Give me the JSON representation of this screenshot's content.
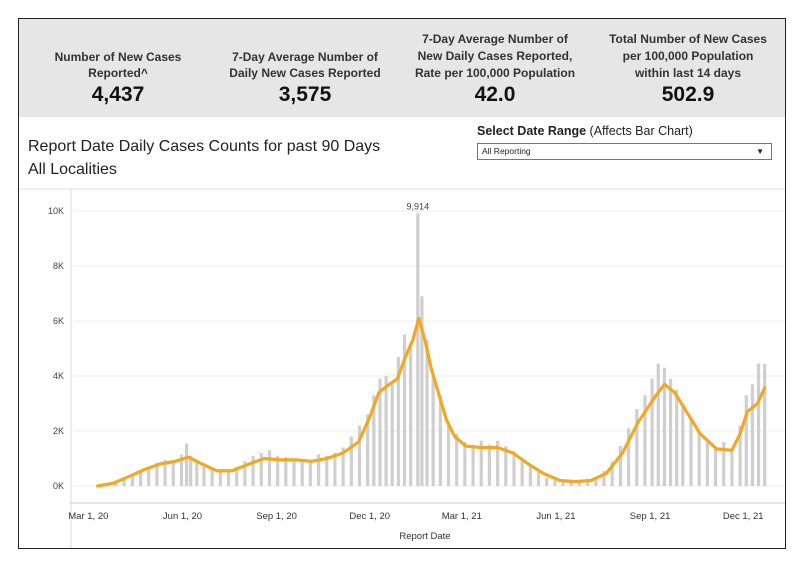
{
  "kpis": [
    {
      "label_lines": [
        "Number of New Cases",
        "Reported^"
      ],
      "value": "4,437"
    },
    {
      "label_lines": [
        "7-Day Average Number of",
        "Daily New Cases Reported"
      ],
      "value": "3,575"
    },
    {
      "label_lines": [
        "7-Day Average Number of",
        "New Daily Cases Reported,",
        "Rate per 100,000 Population"
      ],
      "value": "42.0"
    },
    {
      "label_lines": [
        "Total Number of New Cases",
        "per 100,000 Population",
        "within last 14 days"
      ],
      "value": "502.9"
    }
  ],
  "title_lines": [
    "Report Date Daily Cases Counts for past 90 Days",
    "All Localities"
  ],
  "date_range": {
    "label_bold": "Select Date Range",
    "label_rest": " (Affects Bar Chart)",
    "selected": "All Reporting"
  },
  "colors": {
    "bars": "#cfcfcf",
    "average_line": "#f2a822",
    "kpi_band": "#e6e6e6"
  },
  "icons": {
    "dropdown": "caret-down-icon"
  },
  "chart_data": {
    "type": "bar",
    "xlabel": "Report Date",
    "ylabel": "",
    "ylim": [
      0,
      10000
    ],
    "y_ticks": [
      {
        "value": 0,
        "label": "0K"
      },
      {
        "value": 2000,
        "label": "2K"
      },
      {
        "value": 4000,
        "label": "4K"
      },
      {
        "value": 6000,
        "label": "6K"
      },
      {
        "value": 8000,
        "label": "8K"
      },
      {
        "value": 10000,
        "label": "10K"
      }
    ],
    "x_range": [
      "2020-02-15",
      "2022-01-05"
    ],
    "x_ticks": [
      {
        "date": "2020-03-01",
        "label": "Mar 1, 20"
      },
      {
        "date": "2020-06-01",
        "label": "Jun 1, 20"
      },
      {
        "date": "2020-09-01",
        "label": "Sep 1, 20"
      },
      {
        "date": "2020-12-01",
        "label": "Dec 1, 20"
      },
      {
        "date": "2021-03-01",
        "label": "Mar 1, 21"
      },
      {
        "date": "2021-06-01",
        "label": "Jun 1, 21"
      },
      {
        "date": "2021-09-01",
        "label": "Sep 1, 21"
      },
      {
        "date": "2021-12-01",
        "label": "Dec 1, 21"
      }
    ],
    "annotations": [
      {
        "date": "2021-01-17",
        "value": 9914,
        "label": "9,914"
      }
    ],
    "series": [
      {
        "type": "bar",
        "points": [
          [
            "2020-03-12",
            20
          ],
          [
            "2020-03-20",
            60
          ],
          [
            "2020-03-28",
            150
          ],
          [
            "2020-04-05",
            300
          ],
          [
            "2020-04-13",
            450
          ],
          [
            "2020-04-21",
            520
          ],
          [
            "2020-04-29",
            700
          ],
          [
            "2020-05-07",
            850
          ],
          [
            "2020-05-15",
            950
          ],
          [
            "2020-05-23",
            900
          ],
          [
            "2020-05-31",
            1150
          ],
          [
            "2020-06-05",
            1550
          ],
          [
            "2020-06-09",
            1100
          ],
          [
            "2020-06-15",
            900
          ],
          [
            "2020-06-22",
            700
          ],
          [
            "2020-06-30",
            600
          ],
          [
            "2020-07-08",
            550
          ],
          [
            "2020-07-16",
            600
          ],
          [
            "2020-07-24",
            700
          ],
          [
            "2020-08-01",
            900
          ],
          [
            "2020-08-09",
            1100
          ],
          [
            "2020-08-17",
            1200
          ],
          [
            "2020-08-25",
            1300
          ],
          [
            "2020-09-02",
            1100
          ],
          [
            "2020-09-10",
            1050
          ],
          [
            "2020-09-18",
            1000
          ],
          [
            "2020-09-26",
            950
          ],
          [
            "2020-10-04",
            900
          ],
          [
            "2020-10-12",
            1150
          ],
          [
            "2020-10-20",
            1100
          ],
          [
            "2020-10-28",
            1200
          ],
          [
            "2020-11-05",
            1400
          ],
          [
            "2020-11-13",
            1800
          ],
          [
            "2020-11-21",
            2200
          ],
          [
            "2020-11-29",
            2600
          ],
          [
            "2020-12-05",
            3300
          ],
          [
            "2020-12-11",
            3900
          ],
          [
            "2020-12-17",
            4000
          ],
          [
            "2020-12-23",
            3700
          ],
          [
            "2020-12-29",
            4700
          ],
          [
            "2021-01-04",
            5500
          ],
          [
            "2021-01-10",
            5200
          ],
          [
            "2021-01-17",
            9914
          ],
          [
            "2021-01-21",
            6900
          ],
          [
            "2021-01-26",
            5300
          ],
          [
            "2021-02-01",
            4100
          ],
          [
            "2021-02-08",
            3300
          ],
          [
            "2021-02-16",
            2300
          ],
          [
            "2021-02-24",
            1900
          ],
          [
            "2021-03-04",
            1600
          ],
          [
            "2021-03-12",
            1500
          ],
          [
            "2021-03-20",
            1650
          ],
          [
            "2021-03-28",
            1500
          ],
          [
            "2021-04-05",
            1650
          ],
          [
            "2021-04-13",
            1450
          ],
          [
            "2021-04-21",
            1250
          ],
          [
            "2021-04-29",
            950
          ],
          [
            "2021-05-07",
            700
          ],
          [
            "2021-05-15",
            500
          ],
          [
            "2021-05-23",
            300
          ],
          [
            "2021-05-31",
            220
          ],
          [
            "2021-06-08",
            160
          ],
          [
            "2021-06-16",
            150
          ],
          [
            "2021-06-24",
            170
          ],
          [
            "2021-07-02",
            230
          ],
          [
            "2021-07-10",
            320
          ],
          [
            "2021-07-18",
            550
          ],
          [
            "2021-07-26",
            900
          ],
          [
            "2021-08-03",
            1450
          ],
          [
            "2021-08-11",
            2100
          ],
          [
            "2021-08-19",
            2800
          ],
          [
            "2021-08-27",
            3300
          ],
          [
            "2021-09-03",
            3900
          ],
          [
            "2021-09-09",
            4450
          ],
          [
            "2021-09-15",
            4300
          ],
          [
            "2021-09-21",
            3900
          ],
          [
            "2021-09-27",
            3500
          ],
          [
            "2021-10-03",
            3000
          ],
          [
            "2021-10-11",
            2500
          ],
          [
            "2021-10-19",
            2000
          ],
          [
            "2021-10-27",
            1600
          ],
          [
            "2021-11-04",
            1400
          ],
          [
            "2021-11-12",
            1600
          ],
          [
            "2021-11-20",
            1350
          ],
          [
            "2021-11-28",
            2200
          ],
          [
            "2021-12-04",
            3300
          ],
          [
            "2021-12-10",
            3700
          ],
          [
            "2021-12-16",
            4450
          ],
          [
            "2021-12-22",
            4437
          ]
        ]
      },
      {
        "type": "line",
        "points": [
          [
            "2020-03-10",
            0
          ],
          [
            "2020-03-25",
            100
          ],
          [
            "2020-04-10",
            350
          ],
          [
            "2020-04-25",
            600
          ],
          [
            "2020-05-10",
            800
          ],
          [
            "2020-05-25",
            900
          ],
          [
            "2020-06-07",
            1050
          ],
          [
            "2020-06-20",
            800
          ],
          [
            "2020-07-05",
            550
          ],
          [
            "2020-07-20",
            560
          ],
          [
            "2020-08-05",
            800
          ],
          [
            "2020-08-20",
            1000
          ],
          [
            "2020-09-05",
            950
          ],
          [
            "2020-09-20",
            950
          ],
          [
            "2020-10-05",
            900
          ],
          [
            "2020-10-20",
            1000
          ],
          [
            "2020-11-05",
            1200
          ],
          [
            "2020-11-20",
            1600
          ],
          [
            "2020-12-01",
            2500
          ],
          [
            "2020-12-10",
            3400
          ],
          [
            "2020-12-20",
            3700
          ],
          [
            "2020-12-28",
            3900
          ],
          [
            "2021-01-05",
            4700
          ],
          [
            "2021-01-12",
            5300
          ],
          [
            "2021-01-18",
            6100
          ],
          [
            "2021-01-24",
            5300
          ],
          [
            "2021-01-30",
            4300
          ],
          [
            "2021-02-06",
            3400
          ],
          [
            "2021-02-14",
            2400
          ],
          [
            "2021-02-22",
            1800
          ],
          [
            "2021-03-05",
            1450
          ],
          [
            "2021-03-20",
            1400
          ],
          [
            "2021-04-05",
            1400
          ],
          [
            "2021-04-20",
            1200
          ],
          [
            "2021-05-05",
            800
          ],
          [
            "2021-05-20",
            450
          ],
          [
            "2021-06-05",
            200
          ],
          [
            "2021-06-20",
            160
          ],
          [
            "2021-07-05",
            200
          ],
          [
            "2021-07-20",
            450
          ],
          [
            "2021-08-05",
            1200
          ],
          [
            "2021-08-20",
            2300
          ],
          [
            "2021-09-05",
            3200
          ],
          [
            "2021-09-15",
            3700
          ],
          [
            "2021-09-25",
            3400
          ],
          [
            "2021-10-05",
            2800
          ],
          [
            "2021-10-20",
            1900
          ],
          [
            "2021-11-05",
            1350
          ],
          [
            "2021-11-20",
            1300
          ],
          [
            "2021-11-28",
            1900
          ],
          [
            "2021-12-05",
            2700
          ],
          [
            "2021-12-15",
            3000
          ],
          [
            "2021-12-22",
            3575
          ]
        ]
      }
    ]
  }
}
